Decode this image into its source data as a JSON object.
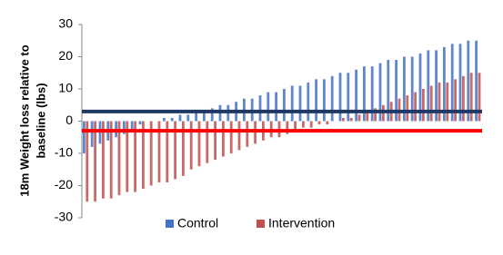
{
  "chart_data": {
    "type": "bar",
    "ylabel": [
      "18m Weight loss relative to",
      "baseline (lbs)"
    ],
    "series": [
      {
        "name": "Control",
        "color": "#4472c4",
        "values": [
          -10,
          -8,
          -7,
          -6,
          -5,
          -4,
          -3,
          -1,
          0,
          0,
          1,
          1,
          2,
          2,
          3,
          3,
          4,
          5,
          5,
          6,
          7,
          7,
          8,
          9,
          9,
          10,
          11,
          11,
          12,
          13,
          13,
          14,
          15,
          15,
          16,
          17,
          17,
          18,
          19,
          19,
          20,
          20,
          21,
          22,
          22,
          23,
          24,
          24,
          25,
          25
        ]
      },
      {
        "name": "Intervention",
        "color": "#c0504d",
        "values": [
          -25,
          -25,
          -24,
          -24,
          -23,
          -22,
          -22,
          -21,
          -20,
          -19,
          -19,
          -18,
          -17,
          -15,
          -14,
          -13,
          -12,
          -11,
          -10,
          -9,
          -8,
          -7,
          -6,
          -5,
          -5,
          -4,
          -3,
          -2,
          -2,
          -1,
          -1,
          0,
          1,
          1,
          2,
          3,
          4,
          5,
          6,
          7,
          8,
          9,
          10,
          11,
          12,
          12,
          13,
          14,
          15,
          15
        ]
      }
    ],
    "reference_lines": [
      {
        "value": 3,
        "color": "#1f3864"
      },
      {
        "value": -3,
        "color": "#ff0000"
      }
    ],
    "ylim": [
      -30,
      30
    ],
    "yticks": [
      -30,
      -20,
      -10,
      0,
      10,
      20,
      30
    ],
    "grid": false
  }
}
